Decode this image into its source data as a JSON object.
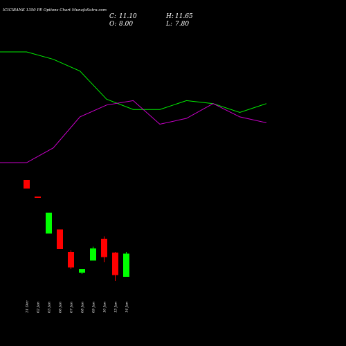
{
  "chart_data": {
    "type": "candlestick",
    "title": "ICICIBANK 1350 PE Options Chart MunafaSutra.com",
    "ohlc": {
      "open_label": "O:",
      "open": "8.00",
      "high_label": "H:",
      "high": "11.65",
      "low_label": "L:",
      "low": "7.80",
      "close_label": "C:",
      "close": "11.10"
    },
    "categories": [
      "31 Dec",
      "02 Jan",
      "03 Jan",
      "06 Jan",
      "07 Jan",
      "08 Jan",
      "09 Jan",
      "10 Jan",
      "13 Jan",
      "14 Jan"
    ],
    "candles": [
      {
        "date": "31 Dec",
        "open": 29.0,
        "high": 29.0,
        "low": 26.5,
        "close": 26.5
      },
      {
        "date": "02 Jan",
        "open": 24.2,
        "high": 24.2,
        "low": 23.8,
        "close": 23.8
      },
      {
        "date": "03 Jan",
        "open": 13.5,
        "high": 19.5,
        "low": 13.5,
        "close": 19.5
      },
      {
        "date": "06 Jan",
        "open": 14.7,
        "high": 14.7,
        "low": 9.0,
        "close": 9.0
      },
      {
        "date": "07 Jan",
        "open": 8.2,
        "high": 8.7,
        "low": 3.2,
        "close": 3.7
      },
      {
        "date": "08 Jan",
        "open": 2.2,
        "high": 3.2,
        "low": 1.8,
        "close": 3.2
      },
      {
        "date": "09 Jan",
        "open": 5.7,
        "high": 9.7,
        "low": 5.7,
        "close": 9.2
      },
      {
        "date": "10 Jan",
        "open": 12.0,
        "high": 12.7,
        "low": 5.2,
        "close": 6.7
      },
      {
        "date": "13 Jan",
        "open": 8.0,
        "high": 8.2,
        "low": -0.2,
        "close": 1.5
      },
      {
        "date": "14 Jan",
        "open": 1.0,
        "high": 8.2,
        "low": 1.0,
        "close": 7.7
      }
    ],
    "ma_series": [
      {
        "color": "#00ee00",
        "values": [
          175,
          175,
          170,
          162,
          143,
          136,
          136,
          142,
          140,
          134,
          140
        ]
      },
      {
        "color": "#cc00cc",
        "values": [
          100,
          100,
          110,
          131,
          139,
          142,
          126,
          130,
          140,
          131,
          127
        ]
      }
    ],
    "colors": {
      "up": "#00ff00",
      "down": "#ff0000",
      "background": "#000000",
      "text": "#ffffff"
    }
  }
}
